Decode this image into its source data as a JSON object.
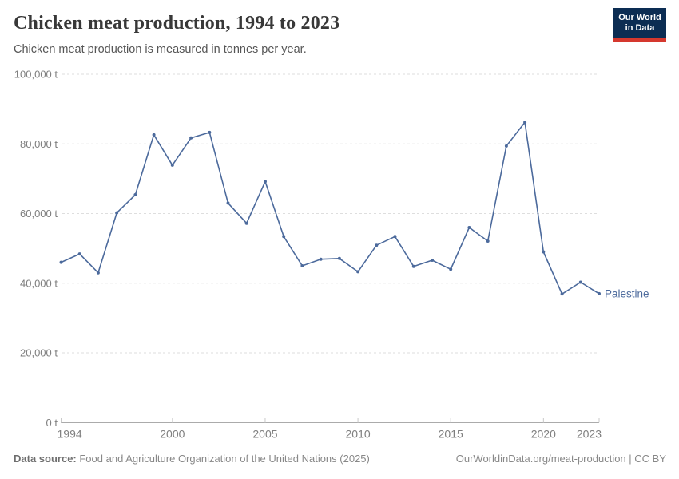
{
  "header": {
    "title": "Chicken meat production, 1994 to 2023",
    "subtitle": "Chicken meat production is measured in tonnes per year.",
    "logo": {
      "line1": "Our World",
      "line2": "in Data"
    }
  },
  "chart_data": {
    "type": "line",
    "title": "Chicken meat production, 1994 to 2023",
    "xlabel": "",
    "ylabel": "Chicken meat production (tonnes per year)",
    "unit": "t",
    "ylim": [
      0,
      100000
    ],
    "yticks": [
      0,
      20000,
      40000,
      60000,
      80000,
      100000
    ],
    "ytick_labels": [
      "0 t",
      "20,000 t",
      "40,000 t",
      "60,000 t",
      "80,000 t",
      "100,000 t"
    ],
    "xticks": [
      1994,
      2000,
      2005,
      2010,
      2015,
      2020,
      2023
    ],
    "grid": "horizontal-dashed",
    "legend_position": "end-of-line-label",
    "x": [
      1994,
      1995,
      1996,
      1997,
      1998,
      1999,
      2000,
      2001,
      2002,
      2003,
      2004,
      2005,
      2006,
      2007,
      2008,
      2009,
      2010,
      2011,
      2012,
      2013,
      2014,
      2015,
      2016,
      2017,
      2018,
      2019,
      2020,
      2021,
      2022,
      2023
    ],
    "series": [
      {
        "name": "Palestine",
        "color": "#4c6a9c",
        "values": [
          46000,
          48400,
          43000,
          60200,
          65400,
          82600,
          73900,
          81700,
          83300,
          63000,
          57200,
          69200,
          53400,
          45000,
          46900,
          47100,
          43300,
          50900,
          53400,
          44800,
          46600,
          44000,
          56000,
          52100,
          79400,
          86200,
          49000,
          36900,
          40300,
          37000
        ]
      }
    ]
  },
  "footer": {
    "source_label": "Data source:",
    "source_text": " Food and Agriculture Organization of the United Nations (2025)",
    "credit": "OurWorldinData.org/meat-production | CC BY"
  },
  "colors": {
    "line": "#4c6a9c",
    "grid": "#dedede",
    "axis": "#8f8f8f",
    "tick": "#c9c9c9",
    "axis_text": "#7f7f7f",
    "logo_bg": "#0c2d53",
    "logo_accent": "#d5382e"
  }
}
